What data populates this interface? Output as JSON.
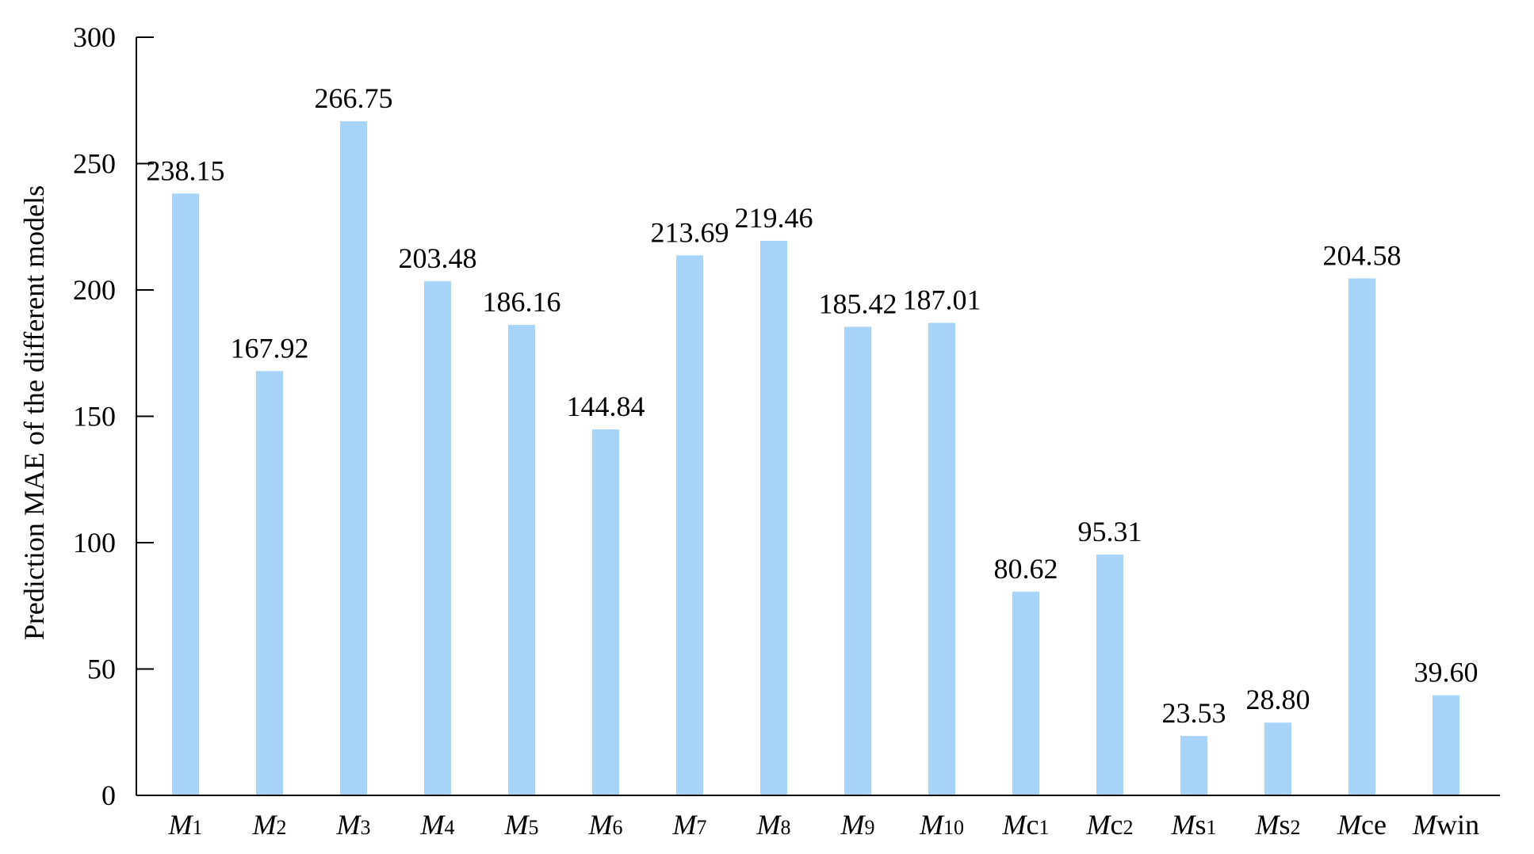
{
  "chart_data": {
    "type": "bar",
    "title": "",
    "xlabel": "",
    "ylabel": "Prediction MAE of the different models",
    "ylim": [
      0,
      300
    ],
    "yticks": [
      0,
      50,
      100,
      150,
      200,
      250,
      300
    ],
    "grid": false,
    "legend": "none",
    "bar_color": "#A9D4FA",
    "categories": [
      {
        "italic": "M",
        "suffix": "1",
        "suffix_style": "small"
      },
      {
        "italic": "M",
        "suffix": "2",
        "suffix_style": "small"
      },
      {
        "italic": "M",
        "suffix": "3",
        "suffix_style": "small"
      },
      {
        "italic": "M",
        "suffix": "4",
        "suffix_style": "small"
      },
      {
        "italic": "M",
        "suffix": "5",
        "suffix_style": "small"
      },
      {
        "italic": "M",
        "suffix": "6",
        "suffix_style": "small"
      },
      {
        "italic": "M",
        "suffix": "7",
        "suffix_style": "small"
      },
      {
        "italic": "M",
        "suffix": "8",
        "suffix_style": "small"
      },
      {
        "italic": "M",
        "suffix": "9",
        "suffix_style": "small"
      },
      {
        "italic": "M",
        "suffix": "10",
        "suffix_style": "small"
      },
      {
        "italic": "M",
        "suffix": "c",
        "sub": "1"
      },
      {
        "italic": "M",
        "suffix": "c",
        "sub": "2"
      },
      {
        "italic": "M",
        "suffix": "s",
        "sub": "1"
      },
      {
        "italic": "M",
        "suffix": "s",
        "sub": "2"
      },
      {
        "italic": "M",
        "suffix": "ce"
      },
      {
        "italic": "M",
        "suffix": "win"
      }
    ],
    "values": [
      238.15,
      167.92,
      266.75,
      203.48,
      186.16,
      144.84,
      213.69,
      219.46,
      185.42,
      187.01,
      80.62,
      95.31,
      23.53,
      28.8,
      204.58,
      39.6
    ],
    "value_labels": [
      "238.15",
      "167.92",
      "266.75",
      "203.48",
      "186.16",
      "144.84",
      "213.69",
      "219.46",
      "185.42",
      "187.01",
      "80.62",
      "95.31",
      "23.53",
      "28.80",
      "204.58",
      "39.60"
    ]
  }
}
